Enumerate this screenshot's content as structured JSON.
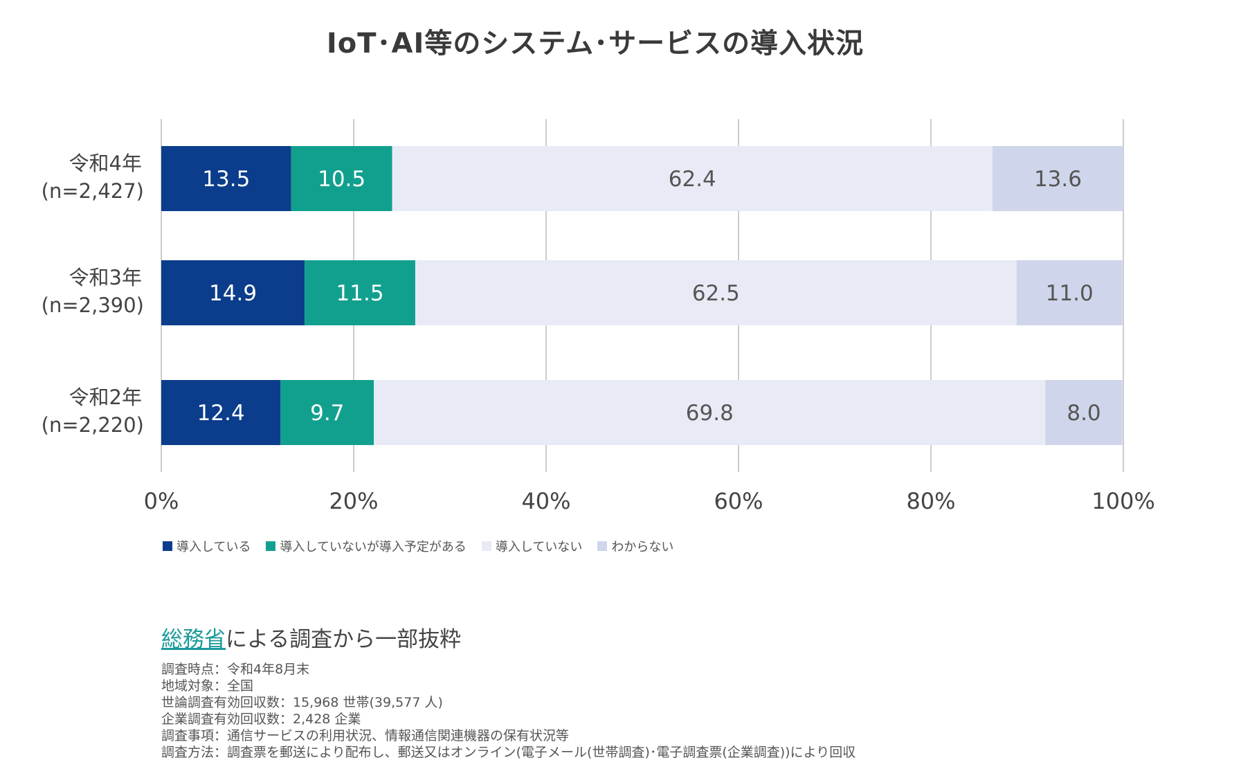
{
  "chart_data": {
    "type": "bar",
    "orientation": "horizontal",
    "stacked": true,
    "title": "IoT･AI等のシステム･サービスの導入状況",
    "categories": [
      {
        "label": "令和4年",
        "n": "(n=2,427)"
      },
      {
        "label": "令和3年",
        "n": "(n=2,390)"
      },
      {
        "label": "令和2年",
        "n": "(n=2,220)"
      }
    ],
    "series": [
      {
        "name": "導入している",
        "color": "#0b3d8c",
        "label_color": "#ffffff",
        "values": [
          13.5,
          14.9,
          12.4
        ],
        "labels": [
          "13.5",
          "14.9",
          "12.4"
        ]
      },
      {
        "name": "導入していないが導入予定がある",
        "color": "#12a08e",
        "label_color": "#ffffff",
        "values": [
          10.5,
          11.5,
          9.7
        ],
        "labels": [
          "10.5",
          "11.5",
          "9.7"
        ]
      },
      {
        "name": "導入していない",
        "color": "#e8ebf5",
        "label_color": "#555555",
        "values": [
          62.4,
          62.5,
          69.8
        ],
        "labels": [
          "62.4",
          "62.5",
          "69.8"
        ]
      },
      {
        "name": "わからない",
        "color": "#cfd5ea",
        "label_color": "#555555",
        "values": [
          13.6,
          11.0,
          8.0
        ],
        "labels": [
          "13.6",
          "11.0",
          "8.0"
        ]
      }
    ],
    "xlim": [
      0,
      100
    ],
    "x_ticks": [
      "0%",
      "20%",
      "40%",
      "60%",
      "80%",
      "100%"
    ],
    "grid": true,
    "legend_position": "bottom-left"
  },
  "source": {
    "link_text": "総務省",
    "suffix": "による調査から一部抜粋"
  },
  "notes": [
    "調査時点：令和4年8月末",
    "地域対象：全国",
    "世論調査有効回収数：15,968 世帯(39,577 人)",
    "企業調査有効回収数：2,428 企業",
    "調査事項：通信サービスの利用状況、情報通信関連機器の保有状況等",
    "調査方法：調査票を郵送により配布し、郵送又はオンライン(電子メール(世帯調査)･電子調査票(企業調査))により回収"
  ]
}
